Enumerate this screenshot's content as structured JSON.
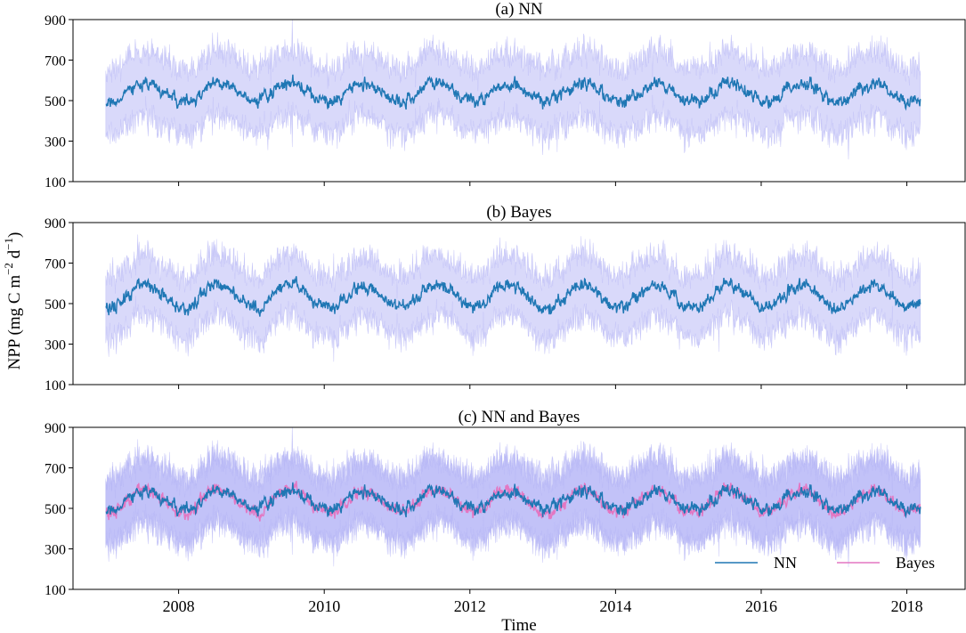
{
  "figure": {
    "ylabel_main": "NPP (mg C m",
    "ylabel_sup1": "−2",
    "ylabel_mid": " d",
    "ylabel_sup2": "−1",
    "ylabel_end": ")",
    "xlabel": "Time"
  },
  "colors": {
    "nn": "#1f77b4",
    "bayes": "#e377c2",
    "band": "#b3b3f5"
  },
  "chart_data": [
    {
      "type": "line",
      "title": "(a) NN",
      "xlabel": "",
      "ylabel": "",
      "x_range": [
        "2007-01-01",
        "2018-03-10"
      ],
      "xlim": [
        2006.55,
        2018.8
      ],
      "ylim": [
        100,
        900
      ],
      "yticks": [
        100,
        300,
        500,
        700,
        900
      ],
      "xticks": [
        2008,
        2010,
        2012,
        2014,
        2016,
        2018
      ],
      "grid": false,
      "series": [
        {
          "name": "NN",
          "mean_level": 540,
          "seasonal_amplitude": 45,
          "band_halfwidth": 160
        }
      ]
    },
    {
      "type": "line",
      "title": "(b) Bayes",
      "xlabel": "",
      "ylabel": "",
      "x_range": [
        "2007-01-01",
        "2018-03-10"
      ],
      "xlim": [
        2006.55,
        2018.8
      ],
      "ylim": [
        100,
        900
      ],
      "yticks": [
        100,
        300,
        500,
        700,
        900
      ],
      "xticks": [
        2008,
        2010,
        2012,
        2014,
        2016,
        2018
      ],
      "grid": false,
      "series": [
        {
          "name": "Bayes",
          "mean_level": 535,
          "seasonal_amplitude": 55,
          "band_halfwidth": 150
        }
      ]
    },
    {
      "type": "line",
      "title": "(c) NN and Bayes",
      "xlabel": "Time",
      "ylabel": "",
      "x_range": [
        "2007-01-01",
        "2018-03-10"
      ],
      "xlim": [
        2006.55,
        2018.8
      ],
      "ylim": [
        100,
        900
      ],
      "yticks": [
        100,
        300,
        500,
        700,
        900
      ],
      "xticks": [
        2008,
        2010,
        2012,
        2014,
        2016,
        2018
      ],
      "xticklabels": [
        "2008",
        "2010",
        "2012",
        "2014",
        "2016",
        "2018"
      ],
      "grid": false,
      "legend": {
        "placement": "bottom-right",
        "entries": [
          "NN",
          "Bayes"
        ]
      },
      "series": [
        {
          "name": "NN",
          "mean_level": 540,
          "seasonal_amplitude": 45,
          "band_halfwidth": 160
        },
        {
          "name": "Bayes",
          "mean_level": 535,
          "seasonal_amplitude": 55,
          "band_halfwidth": 150
        }
      ]
    }
  ]
}
